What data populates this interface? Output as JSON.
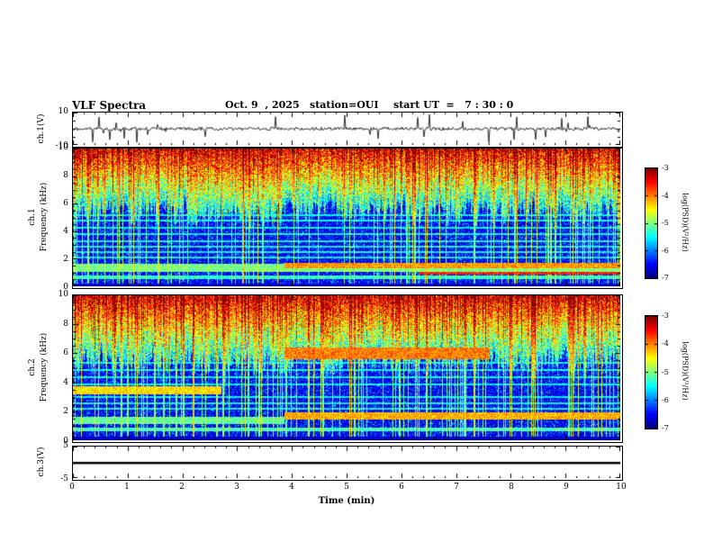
{
  "header": {
    "title": "VLF Spectra",
    "date": "Oct. 9  , 2025",
    "station": "station=OUI",
    "start_ut": "start UT  =   7 : 30 : 0"
  },
  "xaxis": {
    "label": "Time (min)",
    "min": 0,
    "max": 10,
    "ticks": [
      0,
      1,
      2,
      3,
      4,
      5,
      6,
      7,
      8,
      9,
      10
    ]
  },
  "colorbar": {
    "label": "log(PSD)(V²/Hz)",
    "colormap": "jet",
    "min": -7,
    "max": -3,
    "ticks": [
      -3,
      -4,
      -5,
      -6,
      -7
    ]
  },
  "chart_data": [
    {
      "id": "ch1-waveform",
      "type": "line",
      "ylabel": "ch.1(V)",
      "ylim": [
        -10,
        10
      ],
      "yticks": [
        10,
        -10
      ],
      "xlim": [
        0,
        10
      ],
      "description": "Broadband noise waveform of channel 1 voltage: mean 0 V, ~±1 V background with frequent impulsive spikes reaching about ±9 V over the whole 10 minutes."
    },
    {
      "id": "ch1-spectrogram",
      "type": "heatmap",
      "ylabel_line1": "ch.1",
      "ylabel_line2": "Frequency (kHz)",
      "ylim": [
        0,
        10
      ],
      "yticks": [
        0,
        2,
        4,
        6,
        8,
        10
      ],
      "zlabel": "log(PSD)(V²/Hz)",
      "zlim": [
        -7,
        -3
      ],
      "features": {
        "background_level": -6.8,
        "bright_top_band": "≈5.5–10 kHz dense vertical impulsive streaks, levels -5 to -3 (green/yellow/red)",
        "bands": [
          {
            "f": 1.35,
            "hw": 0.3,
            "t0": 0,
            "t1": 10,
            "level": -5.0,
            "note": "persistent cyan band near 1.3 kHz"
          },
          {
            "f": 1.55,
            "hw": 0.18,
            "t0": 3.85,
            "t1": 10,
            "level": -4.1,
            "note": "band intensifies after ~3.85 min"
          },
          {
            "f": 1.0,
            "hw": 0.1,
            "t0": 6.3,
            "t1": 10,
            "level": -3.6,
            "note": "strong narrow line near 1 kHz late in record"
          },
          {
            "f": 0.7,
            "hw": 0.12,
            "t0": 0,
            "t1": 10,
            "level": -5.3
          }
        ],
        "lines_khz": [
          2.1,
          2.5,
          2.9,
          3.3,
          3.8,
          4.3,
          4.8,
          5.2
        ]
      }
    },
    {
      "id": "ch2-spectrogram",
      "type": "heatmap",
      "ylabel_line1": "ch.2",
      "ylabel_line2": "Frequency (kHz)",
      "ylim": [
        0,
        10
      ],
      "yticks": [
        0,
        2,
        4,
        6,
        8,
        10
      ],
      "zlabel": "log(PSD)(V²/Hz)",
      "zlim": [
        -7,
        -3
      ],
      "features": {
        "background_level": -6.8,
        "bright_top_band": "≈6–10 kHz dense vertical impulsive streaks, levels -5 to -3 (green/yellow/red)",
        "bands": [
          {
            "f": 3.5,
            "hw": 0.28,
            "t0": 0,
            "t1": 2.7,
            "level": -4.4,
            "note": "green band near 3.5 kHz for first ~2.7 min"
          },
          {
            "f": 6.0,
            "hw": 0.4,
            "t0": 3.85,
            "t1": 7.6,
            "level": -4.0,
            "note": "strong emission near 6 kHz from ~3.9 to ~7.6 min"
          },
          {
            "f": 1.7,
            "hw": 0.25,
            "t0": 3.85,
            "t1": 10,
            "level": -4.2
          },
          {
            "f": 1.4,
            "hw": 0.25,
            "t0": 0,
            "t1": 3.85,
            "level": -5.1
          },
          {
            "f": 0.8,
            "hw": 0.12,
            "t0": 0,
            "t1": 10,
            "level": -5.2
          }
        ],
        "lines_khz": [
          2.2,
          2.6,
          3.0,
          3.9,
          4.4,
          4.9,
          5.4
        ]
      }
    },
    {
      "id": "ch3-line",
      "type": "line",
      "ylabel": "ch.3(V)",
      "ylim": [
        -5,
        5
      ],
      "yticks": [
        5,
        -5
      ],
      "value": 0,
      "description": "Flat black line at 0 V for the entire interval (channel inactive)."
    }
  ]
}
